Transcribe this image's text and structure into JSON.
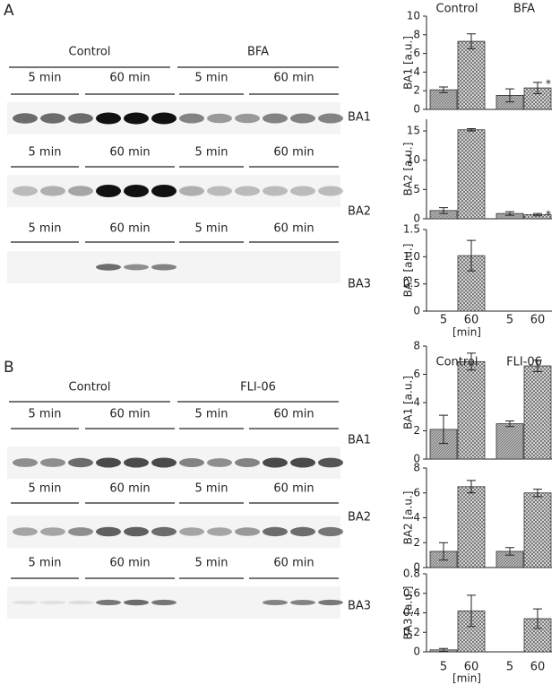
{
  "panel_labels": [
    "A",
    "B"
  ],
  "blots": [
    {
      "groups": [
        "Control",
        "BFA"
      ],
      "rows": [
        {
          "times": [
            "5 min",
            "60 min",
            "5 min",
            "60 min"
          ],
          "label": "BA1"
        },
        {
          "times": [
            "5 min",
            "60 min",
            "5 min",
            "60 min"
          ],
          "label": "BA2"
        },
        {
          "times": [
            "5 min",
            "60 min",
            "5 min",
            "60 min"
          ],
          "label": "BA3"
        }
      ]
    },
    {
      "groups": [
        "Control",
        "FLI-06"
      ],
      "rows": [
        {
          "times": [
            "5 min",
            "60 min",
            "5 min",
            "60 min"
          ],
          "label": "BA1"
        },
        {
          "times": [
            "5 min",
            "60 min",
            "5 min",
            "60 min"
          ],
          "label": "BA2"
        },
        {
          "times": [
            "5 min",
            "60 min",
            "5 min",
            "60 min"
          ],
          "label": "BA3"
        }
      ]
    }
  ],
  "chart_data": [
    {
      "type": "bar",
      "groups": [
        "Control",
        "BFA"
      ],
      "y_label": "BA1 [a.u.]",
      "categories": [
        "5",
        "60",
        "5",
        "60"
      ],
      "values": [
        2.1,
        7.3,
        1.5,
        2.3
      ],
      "errors": [
        0.3,
        0.8,
        0.7,
        0.6
      ],
      "patterns": [
        "hatch",
        "cross",
        "hatch",
        "cross"
      ],
      "ylim": [
        0,
        10
      ],
      "yticks": [
        0,
        2,
        4,
        6,
        8,
        10
      ],
      "annotation": "*"
    },
    {
      "type": "bar",
      "y_label": "BA2 [a.u.]",
      "categories": [
        "5",
        "60",
        "5",
        "60"
      ],
      "values": [
        1.4,
        15.2,
        0.9,
        0.7
      ],
      "errors": [
        0.5,
        0.2,
        0.3,
        0.2
      ],
      "patterns": [
        "hatch",
        "cross",
        "hatch",
        "cross"
      ],
      "ylim": [
        0,
        17
      ],
      "yticks": [
        0,
        5,
        10,
        15
      ],
      "annotation": "*"
    },
    {
      "type": "bar",
      "y_label": "BA3 [a.u.]",
      "categories": [
        "5",
        "60",
        "5",
        "60"
      ],
      "x_label": "[min]",
      "values": [
        0,
        1.02,
        0,
        0
      ],
      "errors": [
        0,
        0.28,
        0,
        0
      ],
      "patterns": [
        "hatch",
        "cross",
        "hatch",
        "cross"
      ],
      "ylim": [
        0,
        1.5
      ],
      "yticks": [
        0,
        0.5,
        {
          "value": 1,
          "label": "1.0"
        },
        1.5
      ]
    },
    {
      "type": "bar",
      "groups": [
        "Control",
        "FLI-06"
      ],
      "y_label": "BA1 [a.u.]",
      "categories": [
        "5",
        "60",
        "5",
        "60"
      ],
      "values": [
        2.1,
        6.9,
        2.5,
        6.6
      ],
      "errors": [
        1.0,
        0.6,
        0.2,
        0.4
      ],
      "patterns": [
        "hatch",
        "cross",
        "hatch",
        "cross"
      ],
      "ylim": [
        0,
        8
      ],
      "yticks": [
        0,
        2,
        4,
        6,
        8
      ]
    },
    {
      "type": "bar",
      "y_label": "BA2 [a.u.]",
      "categories": [
        "5",
        "60",
        "5",
        "60"
      ],
      "values": [
        1.3,
        6.5,
        1.3,
        6.0
      ],
      "errors": [
        0.7,
        0.5,
        0.3,
        0.3
      ],
      "patterns": [
        "hatch",
        "cross",
        "hatch",
        "cross"
      ],
      "ylim": [
        0,
        8
      ],
      "yticks": [
        0,
        2,
        4,
        6,
        8
      ]
    },
    {
      "type": "bar",
      "y_label": "BA3 [a.u.]",
      "categories": [
        "5",
        "60",
        "5",
        "60"
      ],
      "x_label": "[min]",
      "values": [
        0.02,
        0.42,
        0,
        0.34
      ],
      "errors": [
        0.015,
        0.16,
        0,
        0.1
      ],
      "patterns": [
        "hatch",
        "cross",
        "hatch",
        "cross"
      ],
      "ylim": [
        0,
        0.8
      ],
      "yticks": [
        0,
        0.2,
        0.4,
        0.6,
        0.8
      ]
    }
  ]
}
